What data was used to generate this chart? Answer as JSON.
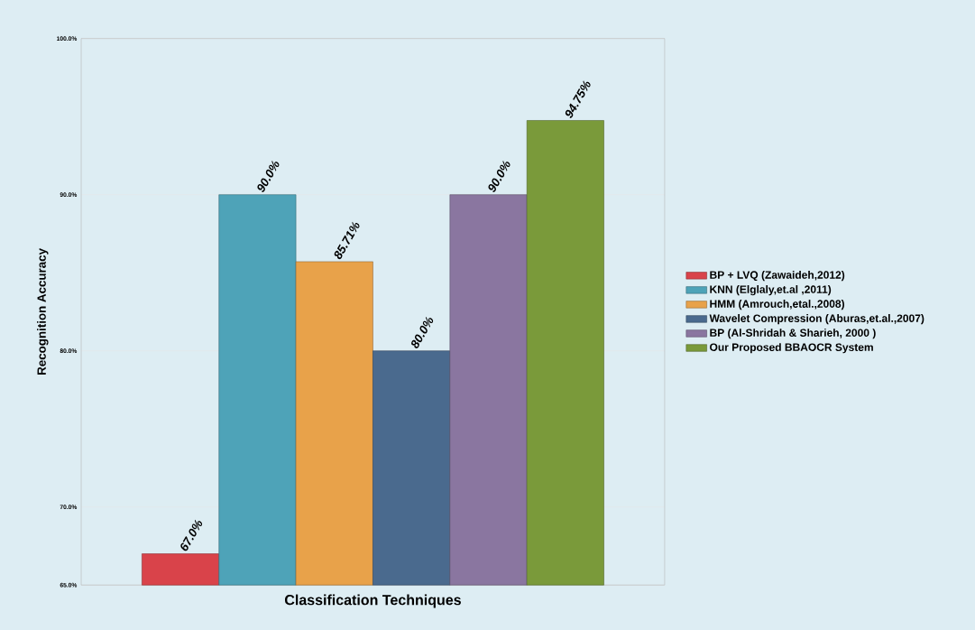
{
  "chart_data": {
    "type": "bar",
    "xlabel": "Classification Techniques",
    "ylabel": "Recognition Accuracy",
    "categories": [
      null
    ],
    "series": [
      {
        "name": "BP + LVQ (Zawaideh,2012)",
        "color": "#d9434a",
        "values": [
          67.0
        ],
        "value_labels": [
          "67.0%"
        ]
      },
      {
        "name": "KNN (Elglaly,et.al ,2011)",
        "color": "#4ea3b8",
        "values": [
          90.0
        ],
        "value_labels": [
          "90.0%"
        ]
      },
      {
        "name": "HMM (Amrouch,etal.,2008)",
        "color": "#e8a24a",
        "values": [
          85.71
        ],
        "value_labels": [
          "85.71%"
        ]
      },
      {
        "name": "Wavelet Compression (Aburas,et.al.,2007)",
        "color": "#4a6a8e",
        "values": [
          80.0
        ],
        "value_labels": [
          "80.0%"
        ]
      },
      {
        "name": "BP (Al-Shridah & Sharieh, 2000 )",
        "color": "#8a76a0",
        "values": [
          90.0
        ],
        "value_labels": [
          "90.0%"
        ]
      },
      {
        "name": "Our Proposed BBAOCR System",
        "color": "#7a9a3a",
        "values": [
          94.75
        ],
        "value_labels": [
          "94.75%"
        ]
      }
    ],
    "ylim": [
      65,
      100
    ],
    "yticks": [
      {
        "value": 65,
        "label": "65.0%"
      },
      {
        "value": 70,
        "label": "70.0%"
      },
      {
        "value": 80,
        "label": "80.0%"
      },
      {
        "value": 90,
        "label": "90.0%"
      },
      {
        "value": 100,
        "label": "100.0%"
      }
    ],
    "grid": "y",
    "legend": "right"
  }
}
